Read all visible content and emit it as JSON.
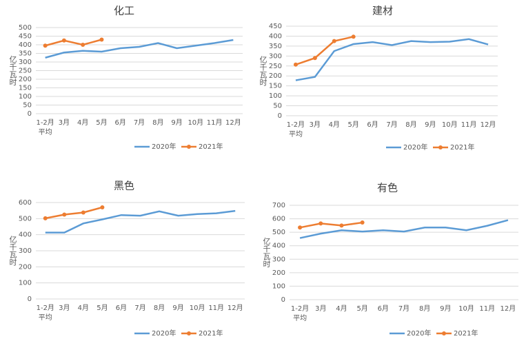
{
  "chart_data": [
    {
      "type": "line",
      "title": "化工",
      "y_label": "亿千瓦时",
      "categories": [
        "1-2月 平均",
        "3月",
        "4月",
        "5月",
        "6月",
        "7月",
        "8月",
        "9月",
        "10月",
        "11月",
        "12月"
      ],
      "series": [
        {
          "name": "2020年",
          "color": "#5b9bd5",
          "values": [
            325,
            355,
            365,
            360,
            380,
            388,
            410,
            380,
            395,
            410,
            428
          ]
        },
        {
          "name": "2021年",
          "color": "#ed7d31",
          "marker": true,
          "values": [
            395,
            425,
            400,
            430,
            null,
            null,
            null,
            null,
            null,
            null,
            null
          ]
        }
      ],
      "ylim": [
        0,
        500
      ],
      "yticks": [
        0,
        50,
        100,
        150,
        200,
        250,
        300,
        350,
        400,
        450,
        500
      ],
      "grid": true,
      "legend": "bottom"
    },
    {
      "type": "line",
      "title": "建材",
      "y_label": "亿千瓦时",
      "categories": [
        "1-2月 平均",
        "3月",
        "4月",
        "5月",
        "6月",
        "7月",
        "8月",
        "9月",
        "10月",
        "11月",
        "12月"
      ],
      "series": [
        {
          "name": "2020年",
          "color": "#5b9bd5",
          "values": [
            178,
            195,
            325,
            360,
            370,
            355,
            375,
            370,
            372,
            385,
            358
          ]
        },
        {
          "name": "2021年",
          "color": "#ed7d31",
          "marker": true,
          "values": [
            257,
            290,
            375,
            397,
            null,
            null,
            null,
            null,
            null,
            null,
            null
          ]
        }
      ],
      "ylim": [
        0,
        450
      ],
      "yticks": [
        0,
        50,
        100,
        150,
        200,
        250,
        300,
        350,
        400,
        450
      ],
      "grid": true,
      "legend": "bottom"
    },
    {
      "type": "line",
      "title": "黑色",
      "y_label": "亿千瓦时",
      "categories": [
        "1-2月 平均",
        "3月",
        "4月",
        "5月",
        "6月",
        "7月",
        "8月",
        "9月",
        "10月",
        "11月",
        "12月"
      ],
      "series": [
        {
          "name": "2020年",
          "color": "#5b9bd5",
          "values": [
            413,
            413,
            470,
            495,
            522,
            518,
            545,
            518,
            528,
            533,
            548
          ]
        },
        {
          "name": "2021年",
          "color": "#ed7d31",
          "marker": true,
          "values": [
            502,
            525,
            538,
            570,
            null,
            null,
            null,
            null,
            null,
            null,
            null
          ]
        }
      ],
      "ylim": [
        0,
        600
      ],
      "yticks": [
        0,
        100,
        200,
        300,
        400,
        500,
        600
      ],
      "grid": true,
      "legend": "bottom"
    },
    {
      "type": "line",
      "title": "有色",
      "y_label": "亿千瓦时",
      "categories": [
        "1-2月 平均",
        "3月",
        "4月",
        "5月",
        "6月",
        "7月",
        "8月",
        "9月",
        "10月",
        "11月",
        "12月"
      ],
      "series": [
        {
          "name": "2020年",
          "color": "#5b9bd5",
          "values": [
            457,
            490,
            515,
            505,
            515,
            505,
            535,
            535,
            515,
            548,
            590
          ]
        },
        {
          "name": "2021年",
          "color": "#ed7d31",
          "marker": true,
          "values": [
            535,
            565,
            550,
            572,
            null,
            null,
            null,
            null,
            null,
            null,
            null
          ]
        }
      ],
      "ylim": [
        0,
        700
      ],
      "yticks": [
        0,
        100,
        200,
        300,
        400,
        500,
        600,
        700
      ],
      "grid": true,
      "legend": "bottom"
    }
  ]
}
